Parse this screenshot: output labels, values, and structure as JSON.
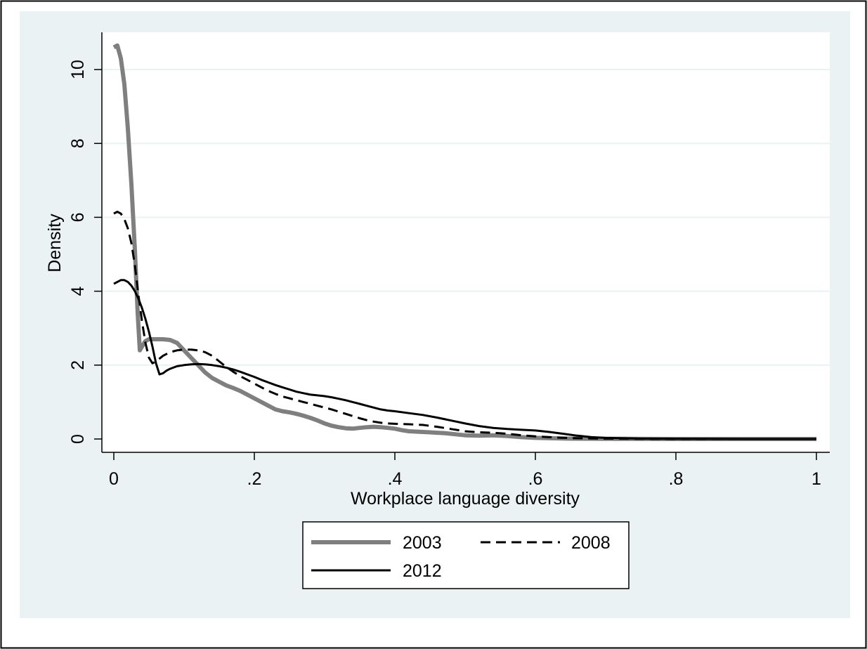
{
  "chart_data": {
    "type": "line",
    "title": "",
    "xlabel": "Workplace language diversity",
    "ylabel": "Density",
    "xlim": [
      0,
      1
    ],
    "ylim": [
      0,
      11
    ],
    "x_ticks": [
      {
        "value": 0,
        "label": "0"
      },
      {
        "value": 0.2,
        "label": ".2"
      },
      {
        "value": 0.4,
        "label": ".4"
      },
      {
        "value": 0.6,
        "label": ".6"
      },
      {
        "value": 0.8,
        "label": ".8"
      },
      {
        "value": 1,
        "label": "1"
      }
    ],
    "y_ticks": [
      {
        "value": 0,
        "label": "0"
      },
      {
        "value": 2,
        "label": "2"
      },
      {
        "value": 4,
        "label": "4"
      },
      {
        "value": 6,
        "label": "6"
      },
      {
        "value": 8,
        "label": "8"
      },
      {
        "value": 10,
        "label": "10"
      }
    ],
    "grid": "horizontal",
    "legend_position": "bottom",
    "background_color": "#eaf2f3",
    "series": [
      {
        "name": "2003",
        "color": "#7f7f7f",
        "style": "solid-thick",
        "points": [
          [
            0.0,
            10.6
          ],
          [
            0.005,
            10.65
          ],
          [
            0.01,
            10.3
          ],
          [
            0.015,
            9.6
          ],
          [
            0.02,
            8.4
          ],
          [
            0.025,
            6.9
          ],
          [
            0.03,
            5.1
          ],
          [
            0.034,
            3.4
          ],
          [
            0.037,
            2.4
          ],
          [
            0.04,
            2.5
          ],
          [
            0.045,
            2.65
          ],
          [
            0.05,
            2.7
          ],
          [
            0.06,
            2.7
          ],
          [
            0.07,
            2.7
          ],
          [
            0.08,
            2.68
          ],
          [
            0.09,
            2.6
          ],
          [
            0.1,
            2.4
          ],
          [
            0.11,
            2.2
          ],
          [
            0.12,
            2.0
          ],
          [
            0.13,
            1.8
          ],
          [
            0.14,
            1.65
          ],
          [
            0.15,
            1.55
          ],
          [
            0.16,
            1.45
          ],
          [
            0.17,
            1.38
          ],
          [
            0.18,
            1.3
          ],
          [
            0.19,
            1.2
          ],
          [
            0.2,
            1.1
          ],
          [
            0.21,
            1.0
          ],
          [
            0.22,
            0.9
          ],
          [
            0.23,
            0.8
          ],
          [
            0.24,
            0.75
          ],
          [
            0.25,
            0.72
          ],
          [
            0.26,
            0.68
          ],
          [
            0.27,
            0.63
          ],
          [
            0.28,
            0.57
          ],
          [
            0.29,
            0.5
          ],
          [
            0.3,
            0.42
          ],
          [
            0.31,
            0.36
          ],
          [
            0.32,
            0.32
          ],
          [
            0.33,
            0.29
          ],
          [
            0.34,
            0.28
          ],
          [
            0.35,
            0.3
          ],
          [
            0.36,
            0.32
          ],
          [
            0.37,
            0.33
          ],
          [
            0.38,
            0.32
          ],
          [
            0.39,
            0.3
          ],
          [
            0.4,
            0.28
          ],
          [
            0.41,
            0.24
          ],
          [
            0.42,
            0.21
          ],
          [
            0.43,
            0.2
          ],
          [
            0.44,
            0.19
          ],
          [
            0.45,
            0.18
          ],
          [
            0.46,
            0.17
          ],
          [
            0.47,
            0.16
          ],
          [
            0.48,
            0.14
          ],
          [
            0.49,
            0.12
          ],
          [
            0.5,
            0.1
          ],
          [
            0.52,
            0.09
          ],
          [
            0.54,
            0.1
          ],
          [
            0.56,
            0.08
          ],
          [
            0.58,
            0.05
          ],
          [
            0.6,
            0.03
          ],
          [
            0.62,
            0.02
          ],
          [
            0.65,
            0.01
          ],
          [
            0.7,
            0.005
          ],
          [
            0.8,
            0.0
          ],
          [
            0.9,
            0.0
          ],
          [
            1.0,
            0.0
          ]
        ]
      },
      {
        "name": "2008",
        "color": "#000000",
        "style": "dashed",
        "points": [
          [
            0.0,
            6.1
          ],
          [
            0.005,
            6.15
          ],
          [
            0.01,
            6.1
          ],
          [
            0.015,
            5.95
          ],
          [
            0.02,
            5.7
          ],
          [
            0.025,
            5.3
          ],
          [
            0.03,
            4.7
          ],
          [
            0.035,
            3.9
          ],
          [
            0.04,
            3.2
          ],
          [
            0.045,
            2.6
          ],
          [
            0.05,
            2.2
          ],
          [
            0.055,
            2.05
          ],
          [
            0.06,
            2.1
          ],
          [
            0.07,
            2.25
          ],
          [
            0.08,
            2.35
          ],
          [
            0.09,
            2.4
          ],
          [
            0.1,
            2.42
          ],
          [
            0.11,
            2.42
          ],
          [
            0.12,
            2.4
          ],
          [
            0.13,
            2.35
          ],
          [
            0.14,
            2.25
          ],
          [
            0.15,
            2.1
          ],
          [
            0.16,
            1.95
          ],
          [
            0.17,
            1.82
          ],
          [
            0.18,
            1.7
          ],
          [
            0.19,
            1.6
          ],
          [
            0.2,
            1.5
          ],
          [
            0.21,
            1.4
          ],
          [
            0.22,
            1.3
          ],
          [
            0.23,
            1.22
          ],
          [
            0.24,
            1.15
          ],
          [
            0.25,
            1.1
          ],
          [
            0.26,
            1.05
          ],
          [
            0.27,
            1.0
          ],
          [
            0.28,
            0.95
          ],
          [
            0.29,
            0.9
          ],
          [
            0.3,
            0.85
          ],
          [
            0.31,
            0.8
          ],
          [
            0.32,
            0.74
          ],
          [
            0.33,
            0.68
          ],
          [
            0.34,
            0.62
          ],
          [
            0.35,
            0.56
          ],
          [
            0.36,
            0.51
          ],
          [
            0.37,
            0.47
          ],
          [
            0.38,
            0.44
          ],
          [
            0.39,
            0.42
          ],
          [
            0.4,
            0.41
          ],
          [
            0.42,
            0.4
          ],
          [
            0.44,
            0.38
          ],
          [
            0.46,
            0.33
          ],
          [
            0.48,
            0.27
          ],
          [
            0.5,
            0.21
          ],
          [
            0.52,
            0.18
          ],
          [
            0.54,
            0.17
          ],
          [
            0.56,
            0.14
          ],
          [
            0.58,
            0.1
          ],
          [
            0.6,
            0.07
          ],
          [
            0.62,
            0.05
          ],
          [
            0.64,
            0.03
          ],
          [
            0.66,
            0.02
          ],
          [
            0.7,
            0.01
          ],
          [
            0.8,
            0.0
          ],
          [
            0.9,
            0.0
          ],
          [
            1.0,
            0.0
          ]
        ]
      },
      {
        "name": "2012",
        "color": "#000000",
        "style": "solid",
        "points": [
          [
            0.0,
            4.2
          ],
          [
            0.005,
            4.25
          ],
          [
            0.01,
            4.3
          ],
          [
            0.015,
            4.3
          ],
          [
            0.02,
            4.25
          ],
          [
            0.025,
            4.15
          ],
          [
            0.03,
            4.0
          ],
          [
            0.035,
            3.8
          ],
          [
            0.04,
            3.55
          ],
          [
            0.045,
            3.25
          ],
          [
            0.05,
            2.9
          ],
          [
            0.055,
            2.5
          ],
          [
            0.06,
            2.05
          ],
          [
            0.065,
            1.75
          ],
          [
            0.07,
            1.78
          ],
          [
            0.075,
            1.85
          ],
          [
            0.08,
            1.9
          ],
          [
            0.09,
            1.97
          ],
          [
            0.1,
            2.0
          ],
          [
            0.11,
            2.02
          ],
          [
            0.12,
            2.03
          ],
          [
            0.13,
            2.02
          ],
          [
            0.14,
            2.0
          ],
          [
            0.15,
            1.97
          ],
          [
            0.16,
            1.93
          ],
          [
            0.17,
            1.88
          ],
          [
            0.18,
            1.82
          ],
          [
            0.19,
            1.75
          ],
          [
            0.2,
            1.68
          ],
          [
            0.21,
            1.6
          ],
          [
            0.22,
            1.53
          ],
          [
            0.23,
            1.46
          ],
          [
            0.24,
            1.4
          ],
          [
            0.25,
            1.34
          ],
          [
            0.26,
            1.28
          ],
          [
            0.27,
            1.24
          ],
          [
            0.28,
            1.2
          ],
          [
            0.29,
            1.18
          ],
          [
            0.3,
            1.16
          ],
          [
            0.31,
            1.13
          ],
          [
            0.32,
            1.09
          ],
          [
            0.33,
            1.05
          ],
          [
            0.34,
            1.0
          ],
          [
            0.35,
            0.95
          ],
          [
            0.36,
            0.9
          ],
          [
            0.37,
            0.85
          ],
          [
            0.38,
            0.8
          ],
          [
            0.39,
            0.77
          ],
          [
            0.4,
            0.75
          ],
          [
            0.42,
            0.7
          ],
          [
            0.44,
            0.65
          ],
          [
            0.46,
            0.58
          ],
          [
            0.48,
            0.5
          ],
          [
            0.5,
            0.42
          ],
          [
            0.52,
            0.35
          ],
          [
            0.54,
            0.3
          ],
          [
            0.56,
            0.27
          ],
          [
            0.58,
            0.25
          ],
          [
            0.6,
            0.23
          ],
          [
            0.62,
            0.19
          ],
          [
            0.64,
            0.14
          ],
          [
            0.66,
            0.09
          ],
          [
            0.68,
            0.05
          ],
          [
            0.7,
            0.03
          ],
          [
            0.75,
            0.01
          ],
          [
            0.8,
            0.005
          ],
          [
            0.9,
            0.0
          ],
          [
            1.0,
            0.0
          ]
        ]
      }
    ]
  }
}
